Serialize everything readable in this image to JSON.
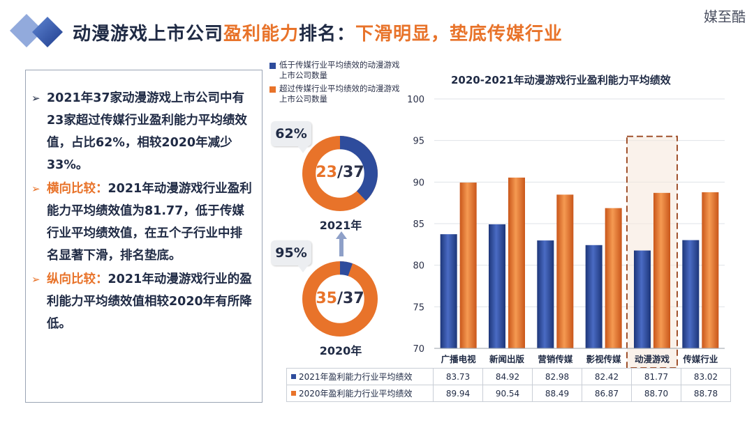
{
  "brand": "媒至酷",
  "title": {
    "part1": "动漫游戏上市公司",
    "part2": "盈利能力",
    "part3": "排名：",
    "part4": "下滑明显，垫底传媒行业"
  },
  "colors": {
    "blue": "#2e4c9c",
    "orange": "#e8732a",
    "gray_bubble": "#eceef1"
  },
  "text_panel": {
    "para1": "2021年37家动漫游戏上市公司中有23家超过传媒行业盈利能力平均绩效值，占比62%，相较2020年减少33%。",
    "para2_kw": "横向比较：",
    "para2": "2021年动漫游戏行业盈利能力平均绩效值为81.77，低于传媒行业平均绩效值，在五个子行业中排名显著下滑，排名垫底。",
    "para3_kw": "纵向比较：",
    "para3": "2021年动漫游戏行业的盈利能力平均绩效值相较2020年有所降低。"
  },
  "legend": {
    "below": "低于传媒行业平均绩效的动漫游戏上市公司数量",
    "above": "超过传媒行业平均绩效的动漫游戏上市公司数量"
  },
  "donut_2021": {
    "percent": "62%",
    "above": 23,
    "total": 37,
    "above_text": "23",
    "total_text": "/37",
    "year": "2021年"
  },
  "donut_2020": {
    "percent": "95%",
    "above": 35,
    "total": 37,
    "above_text": "35",
    "total_text": "/37",
    "year": "2020年"
  },
  "chart_data": {
    "type": "bar",
    "title": "2020-2021年动漫游戏行业盈利能力平均绩效",
    "categories": [
      "广播电视",
      "新闻出版",
      "营销传媒",
      "影视传媒",
      "动漫游戏",
      "传媒行业"
    ],
    "ylim": [
      70,
      100
    ],
    "yticks": [
      "70",
      "75",
      "80",
      "85",
      "90",
      "95",
      "100"
    ],
    "highlight_category": "动漫游戏",
    "series": [
      {
        "name": "2021年盈利能力行业平均绩效",
        "color": "#2e4c9c",
        "values": [
          83.73,
          84.92,
          82.98,
          82.42,
          81.77,
          83.02
        ]
      },
      {
        "name": "2020年盈利能力行业平均绩效",
        "color": "#e8732a",
        "values": [
          89.94,
          90.54,
          88.49,
          86.87,
          88.7,
          88.78
        ]
      }
    ],
    "table_values": {
      "s2021": [
        "83.73",
        "84.92",
        "82.98",
        "82.42",
        "81.77",
        "83.02"
      ],
      "s2020": [
        "89.94",
        "90.54",
        "88.49",
        "86.87",
        "88.70",
        "88.78"
      ]
    }
  }
}
